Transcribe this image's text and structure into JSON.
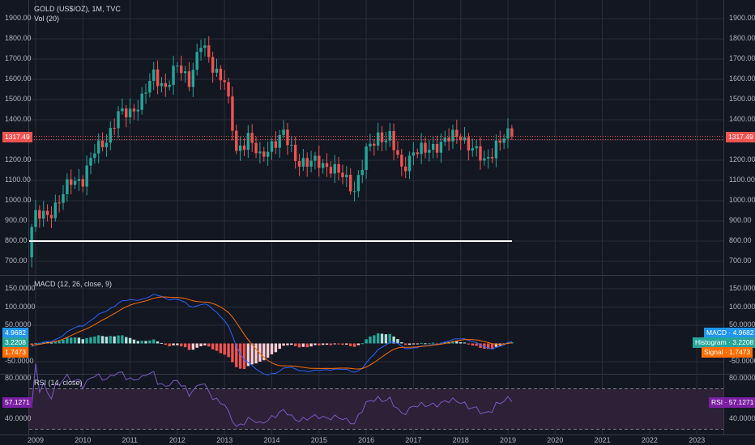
{
  "chart_title": "GOLD (US$/OZ), 1M, TVC",
  "volume_label": "Vol (20)",
  "price_axis_ticks": [
    "1900.00",
    "1800.00",
    "1700.00",
    "1600.00",
    "1500.00",
    "1400.00",
    "1300.00",
    "1200.00",
    "1100.00",
    "1000.00",
    "900.00",
    "800.00",
    "700.00"
  ],
  "price_tag": "1317.49",
  "macd_title": "MACD (12, 26, close, 9)",
  "macd_axis_ticks": [
    "150.0000",
    "100.0000",
    "50.0000",
    "-50.0000"
  ],
  "macd_left_tags": {
    "macd": "4.9682",
    "histogram": "3.2208",
    "signal": "1.7473"
  },
  "macd_right_tags": {
    "macd": "MACD · 4.9682",
    "histogram": "Histogram · 3.2208",
    "signal": "Signal · 1.7473"
  },
  "rsi_title": "RSI (14, close)",
  "rsi_axis_ticks": [
    "80.0000",
    "40.0000"
  ],
  "rsi_left_tag": "57.1271",
  "rsi_right_tag": "RSI · 57.1271",
  "x_ticks": [
    "2009",
    "2010",
    "2011",
    "2012",
    "2013",
    "2014",
    "2015",
    "2016",
    "2017",
    "2018",
    "2019",
    "2020",
    "2021",
    "2022",
    "2023"
  ],
  "colors": {
    "background": "#131722",
    "up": "#26a69a",
    "down": "#ef5350",
    "grid": "#2a2e39",
    "macd_line": "#2962ff",
    "signal_line": "#ff6d00",
    "rsi_line": "#7e57c2",
    "rsi_band": "#2c2136",
    "hline": "#ffffff",
    "macd_tag": "#2196f3",
    "hist_tag": "#26a69a",
    "signal_tag": "#ff6d00",
    "rsi_tag": "#7b1fa2"
  },
  "chart_data": [
    {
      "type": "candlestick",
      "title": "GOLD (US$/OZ), 1M, TVC",
      "ylim": [
        650,
        1950
      ],
      "x_range": [
        "2008-12",
        "2023-04"
      ],
      "horizontal_line": 800,
      "last_price": 1317.49,
      "quarterly_closes": {
        "x": [
          "2009-Q1",
          "2009-Q2",
          "2009-Q3",
          "2009-Q4",
          "2010-Q1",
          "2010-Q2",
          "2010-Q3",
          "2010-Q4",
          "2011-Q1",
          "2011-Q2",
          "2011-Q3",
          "2011-Q4",
          "2012-Q1",
          "2012-Q2",
          "2012-Q3",
          "2012-Q4",
          "2013-Q1",
          "2013-Q2",
          "2013-Q3",
          "2013-Q4",
          "2014-Q1",
          "2014-Q2",
          "2014-Q3",
          "2014-Q4",
          "2015-Q1",
          "2015-Q2",
          "2015-Q3",
          "2015-Q4",
          "2016-Q1",
          "2016-Q2",
          "2016-Q3",
          "2016-Q4",
          "2017-Q1",
          "2017-Q2",
          "2017-Q3",
          "2017-Q4",
          "2018-Q1",
          "2018-Q2",
          "2018-Q3",
          "2018-Q4",
          "2019-Q1"
        ],
        "close": [
          920,
          930,
          1000,
          1095,
          1110,
          1240,
          1310,
          1420,
          1440,
          1500,
          1620,
          1565,
          1660,
          1600,
          1770,
          1665,
          1595,
          1235,
          1325,
          1200,
          1285,
          1325,
          1210,
          1185,
          1185,
          1170,
          1115,
          1060,
          1235,
          1320,
          1315,
          1150,
          1250,
          1240,
          1280,
          1305,
          1325,
          1255,
          1190,
          1280,
          1317
        ]
      }
    },
    {
      "type": "line",
      "title": "MACD (12, 26, close, 9)",
      "ylim": [
        -75,
        175
      ],
      "series": [
        {
          "name": "MACD",
          "values": [
            4.9682
          ]
        },
        {
          "name": "Signal",
          "values": [
            1.7473
          ]
        },
        {
          "name": "Histogram",
          "values": [
            3.2208
          ]
        }
      ]
    },
    {
      "type": "line",
      "title": "RSI (14, close)",
      "ylim": [
        20,
        100
      ],
      "series": [
        {
          "name": "RSI",
          "values": [
            57.1271
          ]
        }
      ]
    }
  ]
}
